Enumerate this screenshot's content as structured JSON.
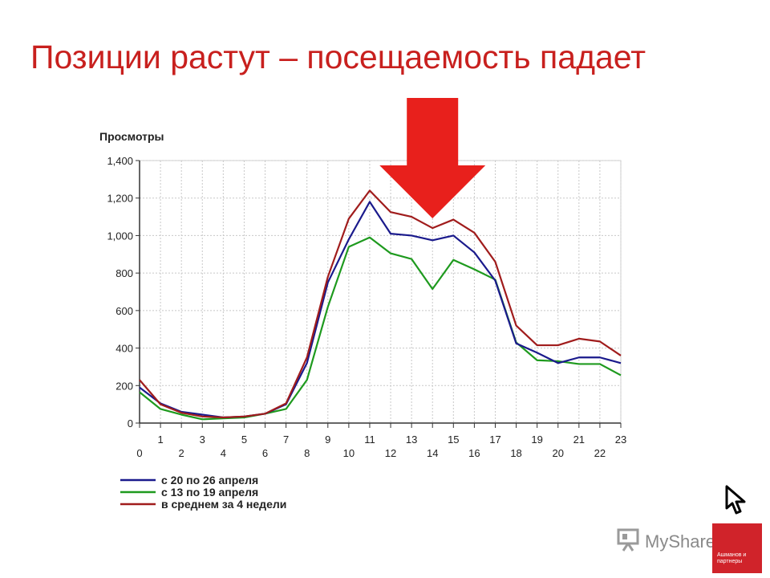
{
  "slide": {
    "title": "Позиции растут – посещаемость падает"
  },
  "chart_data": {
    "type": "line",
    "ylabel": "Просмотры",
    "xlabel": "",
    "x": [
      0,
      1,
      2,
      3,
      4,
      5,
      6,
      7,
      8,
      9,
      10,
      11,
      12,
      13,
      14,
      15,
      16,
      17,
      18,
      19,
      20,
      21,
      22,
      23
    ],
    "x_tick_labels": [
      "0",
      "1",
      "2",
      "3",
      "4",
      "5",
      "6",
      "7",
      "8",
      "9",
      "10",
      "11",
      "12",
      "13",
      "14",
      "15",
      "16",
      "17",
      "18",
      "19",
      "20",
      "21",
      "22",
      "23"
    ],
    "ylim": [
      0,
      1400
    ],
    "y_ticks": [
      0,
      200,
      400,
      600,
      800,
      1000,
      1200,
      1400
    ],
    "y_tick_labels": [
      "0",
      "200",
      "400",
      "600",
      "800",
      "1,000",
      "1,200",
      "1,400"
    ],
    "grid": true,
    "legend_position": "bottom-left",
    "series": [
      {
        "name": "с 20 по 26 апреля",
        "color": "#1a1a8c",
        "values": [
          190,
          105,
          60,
          45,
          30,
          35,
          50,
          100,
          320,
          750,
          980,
          1180,
          1010,
          1000,
          975,
          1000,
          910,
          760,
          425,
          375,
          320,
          350,
          350,
          320
        ]
      },
      {
        "name": "с 13 по 19 апреля",
        "color": "#1e9a1e",
        "values": [
          165,
          75,
          45,
          20,
          25,
          30,
          50,
          75,
          230,
          620,
          940,
          990,
          905,
          875,
          715,
          870,
          820,
          765,
          430,
          335,
          330,
          315,
          315,
          255
        ]
      },
      {
        "name": "в среднем за 4 недели",
        "color": "#a01c1c",
        "values": [
          230,
          100,
          55,
          35,
          30,
          35,
          50,
          105,
          350,
          780,
          1090,
          1240,
          1125,
          1100,
          1040,
          1085,
          1015,
          860,
          520,
          415,
          415,
          450,
          435,
          360
        ]
      }
    ]
  },
  "annotation": {
    "arrow_color": "#e8201c",
    "arrow_points_to_x": 14
  },
  "watermark": {
    "text": "MyShared",
    "badge_text": "Ашманов и партнеры"
  }
}
